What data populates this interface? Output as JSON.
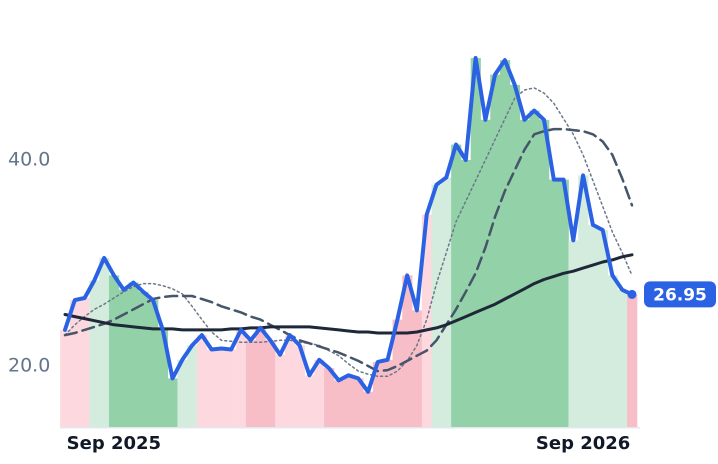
{
  "chart_data": {
    "type": "line",
    "categories": [
      null,
      null,
      null,
      null,
      null,
      "Sep 2025",
      null,
      null,
      null,
      null,
      null,
      null,
      null,
      null,
      null,
      null,
      null,
      null,
      null,
      null,
      null,
      null,
      null,
      null,
      null,
      null,
      null,
      null,
      null,
      null,
      null,
      null,
      null,
      null,
      null,
      null,
      null,
      null,
      null,
      null,
      null,
      null,
      null,
      null,
      null,
      null,
      null,
      null,
      null,
      null,
      null,
      null,
      null,
      "Sep 2026",
      null,
      null,
      null,
      null,
      null
    ],
    "series": [
      {
        "color": "#2b62e3",
        "style": "solid",
        "width": 4,
        "values": [
          23.5,
          26.4,
          26.6,
          28.3,
          30.5,
          28.8,
          27.4,
          28.1,
          27.2,
          26.4,
          23.5,
          18.8,
          20.6,
          22,
          23,
          21.6,
          21.7,
          21.6,
          23.5,
          22.5,
          23.7,
          22.5,
          21.1,
          23,
          22,
          19.1,
          20.6,
          19.8,
          18.6,
          19.1,
          18.8,
          17.5,
          20.4,
          20.6,
          24.5,
          28.8,
          25.4,
          34.7,
          37.6,
          38.3,
          41.5,
          40,
          49.9,
          43.9,
          48.3,
          49.7,
          47.3,
          43.9,
          44.8,
          43.9,
          38.1,
          38.1,
          32.2,
          38.5,
          33.7,
          33.2,
          28.8,
          27.4,
          26.95
        ]
      },
      {
        "color": "#1e2838",
        "style": "solid",
        "width": 3,
        "values": [
          25,
          24.8,
          24.6,
          24.4,
          24.2,
          24.0,
          23.9,
          23.8,
          23.7,
          23.6,
          23.6,
          23.6,
          23.5,
          23.5,
          23.5,
          23.5,
          23.5,
          23.6,
          23.6,
          23.7,
          23.7,
          23.8,
          23.8,
          23.8,
          23.8,
          23.8,
          23.7,
          23.6,
          23.5,
          23.4,
          23.3,
          23.3,
          23.2,
          23.2,
          23.2,
          23.2,
          23.3,
          23.5,
          23.7,
          24.0,
          24.4,
          24.8,
          25.2,
          25.6,
          26.0,
          26.5,
          27.0,
          27.5,
          28.0,
          28.4,
          28.7,
          29.0,
          29.2,
          29.5,
          29.8,
          30.1,
          30.3,
          30.6,
          30.8
        ]
      },
      {
        "color": "#465569",
        "style": "dashed",
        "width": 2.5,
        "values": [
          23,
          23.2,
          23.5,
          23.8,
          24.1,
          24.5,
          25,
          25.5,
          26,
          26.5,
          26.7,
          26.8,
          26.8,
          26.8,
          26.5,
          26.2,
          25.8,
          25.5,
          25.2,
          24.8,
          24.5,
          24,
          23.5,
          23,
          22.5,
          22.2,
          21.9,
          21.6,
          21.3,
          20.9,
          20.5,
          20,
          19.5,
          19.6,
          20,
          20.5,
          21,
          21.5,
          22.5,
          24,
          25.5,
          27.2,
          29,
          31.5,
          34.5,
          37,
          39,
          41,
          42.5,
          42.8,
          43,
          43,
          42.9,
          42.8,
          42.5,
          41.8,
          40.5,
          38.2,
          35.6
        ]
      },
      {
        "color": "#6b7889",
        "style": "dotted",
        "width": 1.5,
        "values": [
          23,
          24,
          24.8,
          25.5,
          26,
          26.6,
          27.2,
          27.7,
          28,
          28,
          27.8,
          27.5,
          27,
          25.8,
          24.5,
          23.3,
          22.5,
          22.4,
          22.3,
          22.3,
          22.3,
          22.4,
          22.5,
          22.5,
          22.3,
          22.2,
          22,
          21.5,
          21,
          20.2,
          19.5,
          19.2,
          19,
          19,
          19.5,
          20.5,
          22,
          24.5,
          28,
          31,
          34,
          36,
          38,
          40,
          42,
          44,
          46,
          46.8,
          47,
          46.5,
          45.5,
          44,
          42.5,
          40.5,
          38,
          35.5,
          33,
          31,
          28.8
        ]
      }
    ],
    "bar_colors": [
      "#fdd9df",
      "#fdd9df",
      "#fdd9df",
      "#d3ecdd",
      "#d3ecdd",
      "#93d1a8",
      "#93d1a8",
      "#93d1a8",
      "#93d1a8",
      "#93d1a8",
      "#93d1a8",
      "#93d1a8",
      "#d3ecdd",
      "#d3ecdd",
      "#fdd9df",
      "#fdd9df",
      "#fdd9df",
      "#fdd9df",
      "#fdd9df",
      "#f8bec8",
      "#f8bec8",
      "#f8bec8",
      "#fdd9df",
      "#fdd9df",
      "#fdd9df",
      "#fdd9df",
      "#fdd9df",
      "#f8bec8",
      "#f8bec8",
      "#f8bec8",
      "#f8bec8",
      "#f8bec8",
      "#f8bec8",
      "#f8bec8",
      "#f8bec8",
      "#f8bec8",
      "#f8bec8",
      "#fdd9df",
      "#d3ecdd",
      "#d3ecdd",
      "#93d1a8",
      "#93d1a8",
      "#93d1a8",
      "#93d1a8",
      "#93d1a8",
      "#93d1a8",
      "#93d1a8",
      "#93d1a8",
      "#93d1a8",
      "#93d1a8",
      "#93d1a8",
      "#93d1a8",
      "#d3ecdd",
      "#d3ecdd",
      "#d3ecdd",
      "#d3ecdd",
      "#d3ecdd",
      "#d3ecdd",
      "#f8bec8"
    ],
    "ylim": [
      14,
      52
    ],
    "yticks": [
      {
        "value": 20,
        "label": "20.0"
      },
      {
        "value": 40,
        "label": "40.0"
      }
    ]
  }
}
